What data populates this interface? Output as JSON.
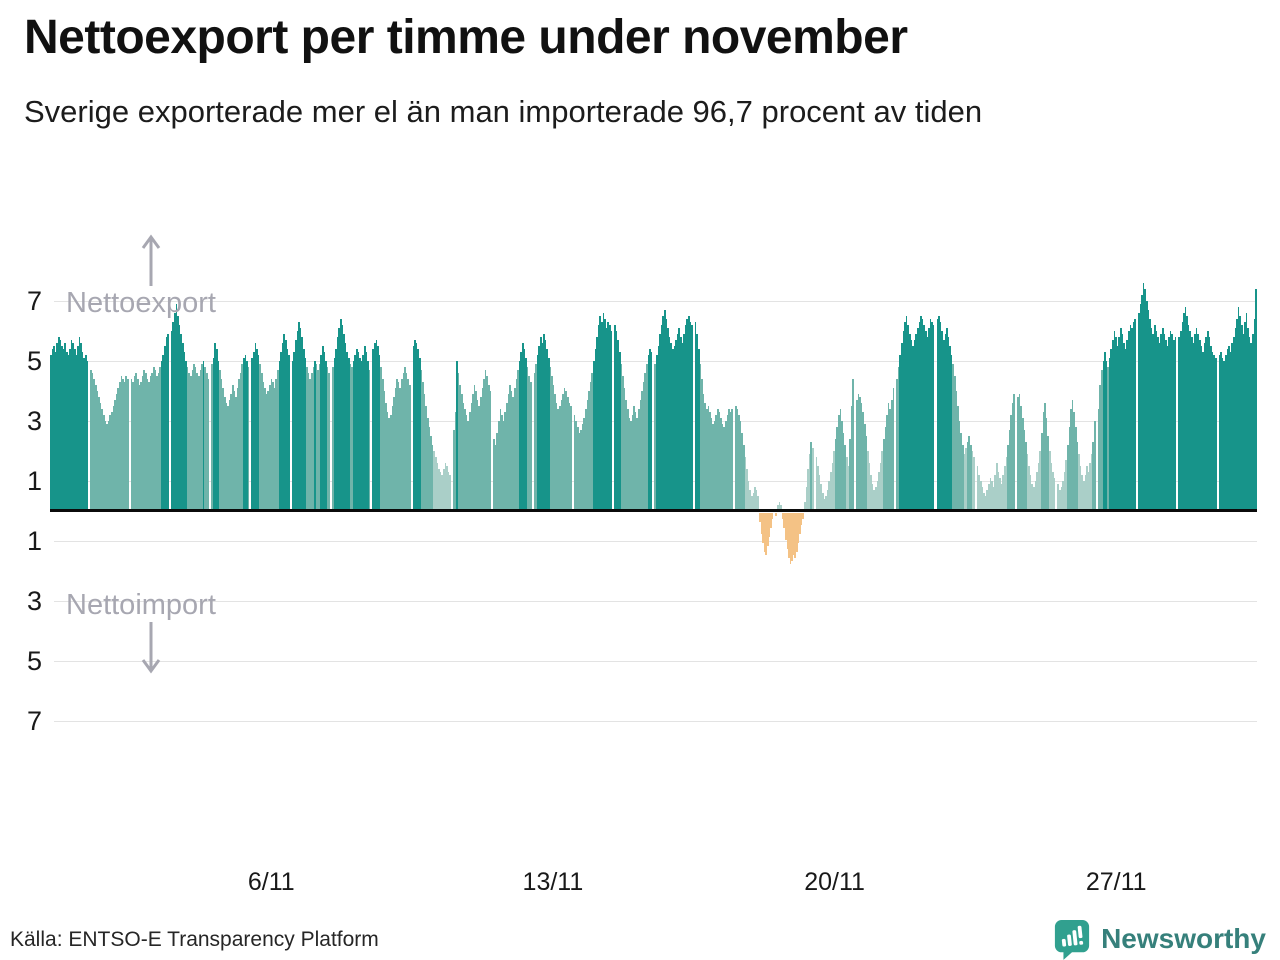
{
  "title": "Nettoexport per timme under november",
  "subtitle": "Sverige exporterade mer el än man importerade 96,7 procent av tiden",
  "source": "Källa: ENTSO-E Transparency Platform",
  "annotations": {
    "export_label": "Nettoexport",
    "import_label": "Nettoimport"
  },
  "logo": {
    "brand": "Newsworthy",
    "icon": "bar-chart-speech-bubble-icon"
  },
  "colors": {
    "bar_high": "#17948a",
    "bar_mid": "#6fb4aa",
    "bar_low": "#aacfc8",
    "bar_negative": "#f4c285",
    "gridline": "#e3e3e3",
    "zero_line": "#0b0b0b",
    "annotation_gray": "#a7a7b1",
    "logo_teal": "#31a08f"
  },
  "chart_data": {
    "type": "bar",
    "title": "Nettoexport per timme under november",
    "subtitle": "Sverige exporterade mer el än man importerade 96,7 procent av tiden",
    "xlabel": "",
    "ylabel": "",
    "unit": "net export per hour (positive = export, negative = import)",
    "ylim": [
      -7.7,
      7.7
    ],
    "grid": true,
    "y_gridline_values": [
      7,
      5,
      3,
      1,
      -1,
      -3,
      -5,
      -7
    ],
    "y_tick_labels": [
      "7",
      "5",
      "3",
      "1",
      "1",
      "3",
      "5",
      "7"
    ],
    "x_ticks": [
      {
        "label": "6/11",
        "day": 6
      },
      {
        "label": "13/11",
        "day": 13
      },
      {
        "label": "20/11",
        "day": 20
      },
      {
        "label": "27/11",
        "day": 27
      }
    ],
    "color_rules": {
      "negative_below": 0,
      "low_below": 2.2,
      "mid_below": 4.95
    },
    "share_positive_percent": 96.7,
    "days": [
      {
        "date": "1/11",
        "values": [
          5.2,
          5.4,
          5.5,
          5.3,
          5.6,
          5.8,
          5.7,
          5.5,
          5.4,
          5.6,
          5.3,
          5.2,
          5.4,
          5.7,
          5.6,
          5.4,
          5.2,
          5.5,
          5.8,
          5.6,
          5.3,
          5.1,
          5.2,
          5.0
        ]
      },
      {
        "date": "2/11",
        "values": [
          4.7,
          4.6,
          4.4,
          4.2,
          4.0,
          3.8,
          3.6,
          3.4,
          3.2,
          3.0,
          2.9,
          3.0,
          3.2,
          3.3,
          3.5,
          3.7,
          3.9,
          4.1,
          4.3,
          4.5,
          4.4,
          4.3,
          4.5,
          4.4
        ]
      },
      {
        "date": "3/11",
        "values": [
          4.4,
          4.3,
          4.5,
          4.6,
          4.4,
          4.2,
          4.3,
          4.5,
          4.7,
          4.6,
          4.4,
          4.3,
          4.5,
          4.6,
          4.8,
          4.7,
          4.5,
          4.6,
          4.8,
          5.0,
          5.2,
          5.5,
          5.8,
          5.9
        ]
      },
      {
        "date": "4/11",
        "values": [
          6.0,
          6.3,
          6.6,
          6.9,
          6.5,
          6.2,
          5.9,
          5.6,
          5.3,
          5.0,
          4.8,
          4.6,
          4.5,
          4.7,
          4.9,
          4.8,
          4.6,
          4.5,
          4.7,
          4.9,
          5.0,
          4.8,
          4.6,
          4.4
        ]
      },
      {
        "date": "5/11",
        "values": [
          4.9,
          5.1,
          5.6,
          5.4,
          5.0,
          4.7,
          4.4,
          4.1,
          3.8,
          3.6,
          3.5,
          3.7,
          3.9,
          4.2,
          4.0,
          3.8,
          4.1,
          4.4,
          4.6,
          4.9,
          5.1,
          5.2,
          5.0,
          4.8
        ]
      },
      {
        "date": "6/11",
        "values": [
          5.1,
          5.3,
          5.6,
          5.4,
          5.2,
          4.9,
          4.6,
          4.3,
          4.1,
          3.9,
          4.0,
          4.2,
          4.4,
          4.3,
          4.1,
          4.4,
          4.7,
          5.0,
          5.3,
          5.6,
          5.9,
          5.7,
          5.4,
          5.2
        ]
      },
      {
        "date": "7/11",
        "values": [
          5.0,
          5.3,
          5.7,
          6.0,
          6.3,
          6.1,
          5.8,
          5.4,
          5.1,
          4.8,
          4.6,
          4.4,
          4.6,
          4.8,
          5.0,
          4.9,
          4.7,
          4.9,
          5.2,
          5.5,
          5.3,
          5.0,
          4.8,
          4.6
        ]
      },
      {
        "date": "8/11",
        "values": [
          4.8,
          5.1,
          5.4,
          5.8,
          6.1,
          6.4,
          6.2,
          5.9,
          5.6,
          5.3,
          5.1,
          4.9,
          4.8,
          5.0,
          5.2,
          5.4,
          5.3,
          5.1,
          5.0,
          5.2,
          5.5,
          5.3,
          5.0,
          4.7
        ]
      },
      {
        "date": "9/11",
        "values": [
          5.4,
          5.6,
          5.7,
          5.5,
          5.2,
          4.8,
          4.4,
          4.0,
          3.6,
          3.3,
          3.1,
          3.2,
          3.5,
          3.8,
          4.1,
          4.4,
          4.3,
          4.1,
          4.4,
          4.6,
          4.8,
          4.6,
          4.4,
          4.2
        ]
      },
      {
        "date": "10/11",
        "values": [
          5.5,
          5.7,
          5.6,
          5.4,
          5.1,
          4.7,
          4.3,
          3.9,
          3.5,
          3.1,
          2.8,
          2.5,
          2.2,
          2.0,
          1.8,
          1.6,
          1.4,
          1.3,
          1.2,
          1.4,
          1.6,
          1.5,
          1.3,
          1.2
        ]
      },
      {
        "date": "11/11",
        "values": [
          2.7,
          3.3,
          5.0,
          4.6,
          4.2,
          3.9,
          3.6,
          3.4,
          3.2,
          3.0,
          3.3,
          3.6,
          3.9,
          4.2,
          4.0,
          3.7,
          3.5,
          3.8,
          4.1,
          4.4,
          4.7,
          4.5,
          4.2,
          4.0
        ]
      },
      {
        "date": "12/11",
        "values": [
          2.4,
          2.2,
          2.6,
          3.0,
          3.4,
          3.2,
          3.0,
          3.3,
          3.6,
          3.9,
          4.2,
          4.0,
          3.8,
          4.1,
          4.4,
          4.7,
          5.0,
          5.3,
          5.6,
          5.4,
          5.1,
          4.8,
          4.5,
          4.3
        ]
      },
      {
        "date": "13/11",
        "values": [
          4.6,
          4.9,
          5.2,
          5.5,
          5.8,
          5.6,
          5.9,
          5.7,
          5.4,
          5.1,
          4.8,
          4.5,
          4.2,
          3.9,
          3.6,
          3.4,
          3.5,
          3.7,
          3.9,
          4.1,
          4.0,
          3.8,
          3.6,
          3.5
        ]
      },
      {
        "date": "14/11",
        "values": [
          3.2,
          3.0,
          2.8,
          2.6,
          2.7,
          2.9,
          3.1,
          3.4,
          3.7,
          4.0,
          4.3,
          4.6,
          5.0,
          5.4,
          5.8,
          6.2,
          6.5,
          6.3,
          6.6,
          6.4,
          6.1,
          6.3,
          6.2,
          6.0
        ]
      },
      {
        "date": "15/11",
        "values": [
          6.2,
          6.0,
          5.7,
          5.3,
          4.9,
          4.5,
          4.1,
          3.7,
          3.4,
          3.1,
          3.0,
          3.2,
          3.5,
          3.3,
          3.1,
          3.4,
          3.7,
          4.0,
          4.3,
          4.6,
          4.9,
          5.2,
          5.4,
          5.3
        ]
      },
      {
        "date": "16/11",
        "values": [
          4.9,
          5.2,
          5.5,
          5.9,
          6.2,
          6.5,
          6.7,
          6.4,
          6.1,
          5.8,
          5.6,
          5.4,
          5.5,
          5.7,
          5.9,
          6.1,
          5.8,
          5.6,
          5.9,
          6.2,
          6.4,
          6.5,
          6.3,
          6.2
        ]
      },
      {
        "date": "17/11",
        "values": [
          6.3,
          5.9,
          5.4,
          4.9,
          4.4,
          3.9,
          3.6,
          3.4,
          3.5,
          3.3,
          3.1,
          2.9,
          3.0,
          3.2,
          3.4,
          3.3,
          3.1,
          2.9,
          2.8,
          3.0,
          3.2,
          3.4,
          3.3,
          3.4
        ]
      },
      {
        "date": "18/11",
        "values": [
          3.5,
          3.4,
          3.2,
          3.0,
          2.6,
          2.2,
          1.8,
          1.4,
          1.0,
          0.7,
          0.5,
          0.6,
          0.8,
          0.7,
          0.5,
          -0.3,
          -0.7,
          -1.0,
          -1.3,
          -1.4,
          -1.1,
          -0.8,
          -0.5,
          -0.2
        ]
      },
      {
        "date": "19/11",
        "values": [
          -0.1,
          0.2,
          0.3,
          0.2,
          -0.2,
          -0.5,
          -0.9,
          -1.2,
          -1.5,
          -1.7,
          -1.6,
          -1.4,
          -1.5,
          -1.3,
          -1.0,
          -0.7,
          -0.4,
          -0.2,
          0.3,
          0.8,
          1.4,
          1.9,
          2.3,
          2.1
        ]
      },
      {
        "date": "20/11",
        "values": [
          1.8,
          1.5,
          1.2,
          0.9,
          0.6,
          0.4,
          0.5,
          0.7,
          1.0,
          1.3,
          1.6,
          2.0,
          2.4,
          2.8,
          3.2,
          3.4,
          3.0,
          2.6,
          2.2,
          1.8,
          1.5,
          2.4,
          3.5,
          4.4
        ]
      },
      {
        "date": "21/11",
        "values": [
          3.7,
          3.9,
          3.8,
          3.6,
          3.3,
          2.9,
          2.5,
          2.0,
          1.6,
          1.2,
          0.9,
          0.7,
          0.8,
          1.0,
          1.3,
          1.6,
          2.0,
          2.4,
          2.8,
          3.2,
          3.6,
          3.4,
          3.7,
          4.1
        ]
      },
      {
        "date": "22/11",
        "values": [
          4.4,
          4.8,
          5.2,
          5.6,
          6.0,
          6.3,
          6.5,
          6.2,
          5.9,
          5.7,
          5.5,
          5.7,
          5.9,
          6.1,
          6.3,
          6.5,
          6.4,
          6.2,
          6.0,
          5.8,
          6.1,
          6.4,
          6.3,
          6.2
        ]
      },
      {
        "date": "23/11",
        "values": [
          6.4,
          6.5,
          6.3,
          6.0,
          5.7,
          5.9,
          6.1,
          5.8,
          5.5,
          5.2,
          4.9,
          4.5,
          4.0,
          3.5,
          3.0,
          2.6,
          2.2,
          1.9,
          2.1,
          2.3,
          2.5,
          2.2,
          2.0,
          1.8
        ]
      },
      {
        "date": "24/11",
        "values": [
          1.5,
          1.2,
          1.0,
          0.8,
          0.6,
          0.5,
          0.7,
          0.9,
          1.1,
          1.0,
          0.8,
          1.2,
          1.6,
          1.3,
          1.1,
          0.9,
          1.2,
          1.5,
          1.8,
          2.2,
          2.7,
          3.2,
          3.6,
          3.9
        ]
      },
      {
        "date": "25/11",
        "values": [
          3.8,
          3.9,
          3.5,
          3.1,
          2.7,
          2.3,
          1.9,
          1.5,
          1.2,
          0.9,
          0.8,
          1.0,
          1.3,
          1.6,
          2.0,
          2.6,
          3.3,
          3.6,
          3.1,
          2.5,
          2.0,
          1.6,
          1.3,
          1.1
        ]
      },
      {
        "date": "26/11",
        "values": [
          0.9,
          0.7,
          0.8,
          1.0,
          1.3,
          1.7,
          2.2,
          2.8,
          3.4,
          3.7,
          3.3,
          2.8,
          2.3,
          1.9,
          1.5,
          1.2,
          1.0,
          1.2,
          1.5,
          1.3,
          1.6,
          1.9,
          2.3,
          3.0
        ]
      },
      {
        "date": "27/11",
        "values": [
          3.4,
          4.2,
          4.7,
          5.0,
          5.3,
          5.0,
          4.8,
          5.1,
          5.4,
          5.7,
          6.0,
          5.8,
          5.5,
          5.8,
          6.1,
          5.9,
          5.6,
          5.4,
          5.7,
          6.0,
          6.2,
          6.1,
          6.3,
          6.4
        ]
      },
      {
        "date": "28/11",
        "values": [
          6.6,
          6.9,
          7.2,
          7.6,
          7.4,
          7.0,
          6.7,
          6.4,
          6.1,
          5.9,
          6.2,
          6.0,
          5.8,
          5.6,
          5.9,
          6.1,
          5.9,
          5.7,
          5.5,
          5.8,
          6.0,
          5.9,
          5.7,
          5.8
        ]
      },
      {
        "date": "29/11",
        "values": [
          5.8,
          6.0,
          6.3,
          6.6,
          6.8,
          6.5,
          6.2,
          6.0,
          5.8,
          5.6,
          5.9,
          6.1,
          5.9,
          5.7,
          5.5,
          5.3,
          5.6,
          5.8,
          6.0,
          5.8,
          5.5,
          5.3,
          5.2,
          5.1
        ]
      },
      {
        "date": "30/11",
        "values": [
          5.2,
          5.3,
          5.1,
          5.0,
          5.2,
          5.4,
          5.5,
          5.3,
          5.6,
          5.8,
          6.1,
          6.4,
          6.8,
          6.5,
          6.2,
          5.9,
          6.3,
          6.6,
          6.1,
          5.8,
          5.6,
          5.9,
          6.4,
          7.4
        ]
      }
    ]
  }
}
